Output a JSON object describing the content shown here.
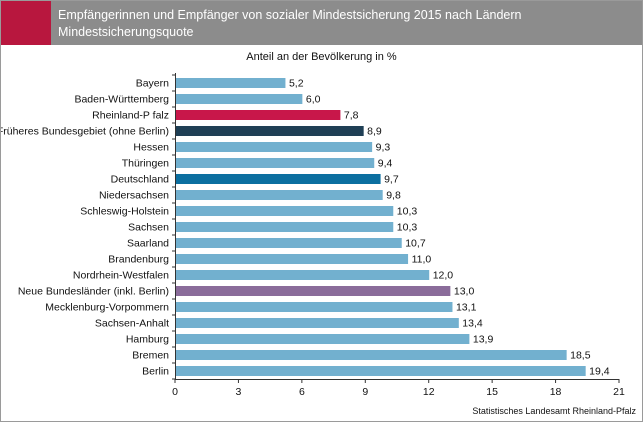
{
  "title": "Empfängerinnen und Empfänger von sozialer Mindestsicherung 2015 nach Ländern",
  "subtitle": "Mindestsicherungsquote",
  "source": "Statistisches Landesamt Rheinland-Pfalz",
  "colors": {
    "header": "#8c8c8c",
    "accent": "#b8173e",
    "default_bar": "#72b0cf",
    "rheinland_pfalz": "#c8174a",
    "frueheres_bundesgebiet": "#1f3f55",
    "deutschland": "#0c6fa0",
    "neue_bundeslaender": "#8a6c9a"
  },
  "chart_data": {
    "type": "bar",
    "orientation": "horizontal",
    "ylabel": "Anteil an der Bevölkerung in %",
    "xlim": [
      0,
      21
    ],
    "xticks": [
      "0",
      "3",
      "6",
      "9",
      "12",
      "15",
      "18",
      "21"
    ],
    "categories": [
      "Bayern",
      "Baden-Württemberg",
      "Rheinland-P falz",
      "Früheres Bundesgebiet (ohne Berlin)",
      "Hessen",
      "Thüringen",
      "Deutschland",
      "Niedersachsen",
      "Schleswig-Holstein",
      "Sachsen",
      "Saarland",
      "Brandenburg",
      "Nordrhein-Westfalen",
      "Neue Bundesländer (inkl. Berlin)",
      "Mecklenburg-Vorpommern",
      "Sachsen-Anhalt",
      "Hamburg",
      "Bremen",
      "Berlin"
    ],
    "values": [
      5.2,
      6.0,
      7.8,
      8.9,
      9.3,
      9.4,
      9.7,
      9.8,
      10.3,
      10.3,
      10.7,
      11.0,
      12.0,
      13.0,
      13.1,
      13.4,
      13.9,
      18.5,
      19.4
    ],
    "value_labels": [
      "5,2",
      "6,0",
      "7,8",
      "8,9",
      "9,3",
      "9,4",
      "9,7",
      "9,8",
      "10,3",
      "10,3",
      "10,7",
      "11,0",
      "12,0",
      "13,0",
      "13,1",
      "13,4",
      "13,9",
      "18,5",
      "19,4"
    ],
    "highlight": {
      "Rheinland-P falz": "rheinland_pfalz",
      "Früheres Bundesgebiet (ohne Berlin)": "frueheres_bundesgebiet",
      "Deutschland": "deutschland",
      "Neue Bundesländer (inkl. Berlin)": "neue_bundeslaender"
    },
    "grid": false
  }
}
